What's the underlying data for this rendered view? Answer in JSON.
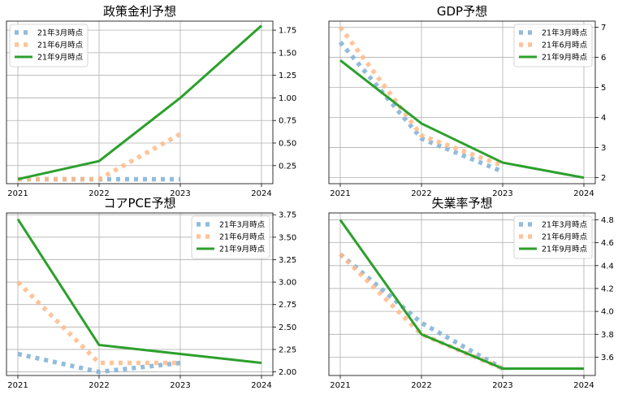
{
  "chart_data": [
    {
      "type": "line",
      "title": "政策金利予想",
      "x_ticks": [
        "2021",
        "2022",
        "2023",
        "2024"
      ],
      "xlim": [
        2021,
        2024
      ],
      "ylim": [
        0.05,
        1.85
      ],
      "y_ticks": [
        "0.25",
        "0.50",
        "0.75",
        "1.00",
        "1.25",
        "1.50",
        "1.75"
      ],
      "y_tick_values": [
        0.25,
        0.5,
        0.75,
        1.0,
        1.25,
        1.5,
        1.75
      ],
      "legend_loc": "upper-left",
      "series": [
        {
          "name": "21年3月時点",
          "color": "#7fb0d6",
          "style": "dotted",
          "x": [
            2021,
            2022,
            2023
          ],
          "y": [
            0.1,
            0.1,
            0.1
          ]
        },
        {
          "name": "21年6月時点",
          "color": "#ffba87",
          "style": "dotted",
          "x": [
            2021,
            2022,
            2023
          ],
          "y": [
            0.1,
            0.1,
            0.6
          ]
        },
        {
          "name": "21年9月時点",
          "color": "#2ca02c",
          "style": "solid",
          "x": [
            2021,
            2022,
            2023,
            2024
          ],
          "y": [
            0.1,
            0.3,
            1.0,
            1.8
          ]
        }
      ]
    },
    {
      "type": "line",
      "title": "GDP予想",
      "x_ticks": [
        "2021",
        "2022",
        "2023",
        "2024"
      ],
      "xlim": [
        2021,
        2024
      ],
      "ylim": [
        1.8,
        7.2
      ],
      "y_ticks": [
        "2",
        "3",
        "4",
        "5",
        "6",
        "7"
      ],
      "y_tick_values": [
        2,
        3,
        4,
        5,
        6,
        7
      ],
      "legend_loc": "upper-right",
      "series": [
        {
          "name": "21年3月時点",
          "color": "#7fb0d6",
          "style": "dotted",
          "x": [
            2021,
            2022,
            2023
          ],
          "y": [
            6.5,
            3.3,
            2.2
          ]
        },
        {
          "name": "21年6月時点",
          "color": "#ffba87",
          "style": "dotted",
          "x": [
            2021,
            2022,
            2023
          ],
          "y": [
            7.0,
            3.4,
            2.4
          ]
        },
        {
          "name": "21年9月時点",
          "color": "#2ca02c",
          "style": "solid",
          "x": [
            2021,
            2022,
            2023,
            2024
          ],
          "y": [
            5.9,
            3.8,
            2.5,
            2.0
          ]
        }
      ]
    },
    {
      "type": "line",
      "title": "コアPCE予想",
      "x_ticks": [
        "2021",
        "2022",
        "2023",
        "2024"
      ],
      "xlim": [
        2021,
        2024
      ],
      "ylim": [
        1.96,
        3.77
      ],
      "y_ticks": [
        "2.00",
        "2.25",
        "2.50",
        "2.75",
        "3.00",
        "3.25",
        "3.50",
        "3.75"
      ],
      "y_tick_values": [
        2.0,
        2.25,
        2.5,
        2.75,
        3.0,
        3.25,
        3.5,
        3.75
      ],
      "legend_loc": "upper-right",
      "series": [
        {
          "name": "21年3月時点",
          "color": "#7fb0d6",
          "style": "dotted",
          "x": [
            2021,
            2022,
            2023
          ],
          "y": [
            2.2,
            2.0,
            2.1
          ]
        },
        {
          "name": "21年6月時点",
          "color": "#ffba87",
          "style": "dotted",
          "x": [
            2021,
            2022,
            2023
          ],
          "y": [
            3.0,
            2.1,
            2.1
          ]
        },
        {
          "name": "21年9月時点",
          "color": "#2ca02c",
          "style": "solid",
          "x": [
            2021,
            2022,
            2023,
            2024
          ],
          "y": [
            3.7,
            2.3,
            2.2,
            2.1
          ]
        }
      ]
    },
    {
      "type": "line",
      "title": "失業率予想",
      "x_ticks": [
        "2021",
        "2022",
        "2023",
        "2024"
      ],
      "xlim": [
        2021,
        2024
      ],
      "ylim": [
        3.44,
        4.86
      ],
      "y_ticks": [
        "3.6",
        "3.8",
        "4.0",
        "4.2",
        "4.4",
        "4.6",
        "4.8"
      ],
      "y_tick_values": [
        3.6,
        3.8,
        4.0,
        4.2,
        4.4,
        4.6,
        4.8
      ],
      "legend_loc": "upper-right",
      "series": [
        {
          "name": "21年3月時点",
          "color": "#7fb0d6",
          "style": "dotted",
          "x": [
            2021,
            2022,
            2023
          ],
          "y": [
            4.5,
            3.9,
            3.5
          ]
        },
        {
          "name": "21年6月時点",
          "color": "#ffba87",
          "style": "dotted",
          "x": [
            2021,
            2022,
            2023
          ],
          "y": [
            4.5,
            3.8,
            3.5
          ]
        },
        {
          "name": "21年9月時点",
          "color": "#2ca02c",
          "style": "solid",
          "x": [
            2021,
            2022,
            2023,
            2024
          ],
          "y": [
            4.8,
            3.8,
            3.5,
            3.5
          ]
        }
      ]
    }
  ]
}
